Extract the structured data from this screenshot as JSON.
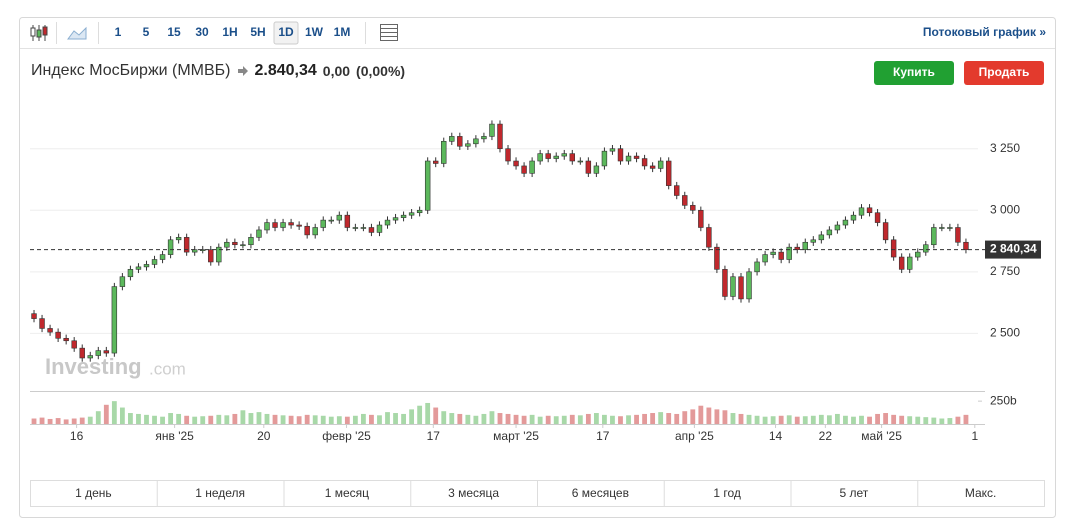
{
  "toolbar": {
    "intervals": [
      "1",
      "5",
      "15",
      "30",
      "1H",
      "5H",
      "1D",
      "1W",
      "1M"
    ],
    "active": "1D",
    "stream_link": "Потоковый график »"
  },
  "header": {
    "title": "Индекс МосБиржи (ММВБ)",
    "price": "2.840,34",
    "change": "0,00",
    "change_pct": "(0,00%)"
  },
  "buttons": {
    "buy": "Купить",
    "sell": "Продать"
  },
  "watermark": [
    "Investing",
    ".com"
  ],
  "chart_data": {
    "type": "candlestick",
    "up_color": "#5cb85c",
    "down_color": "#c0282d",
    "xlim": [
      -0.5,
      117.5
    ],
    "xticks": [
      {
        "value": 5.3,
        "label": "16"
      },
      {
        "value": 17.5,
        "label": "янв '25"
      },
      {
        "value": 28.6,
        "label": "20"
      },
      {
        "value": 38.9,
        "label": "февр '25"
      },
      {
        "value": 49.7,
        "label": "17"
      },
      {
        "value": 60,
        "label": "март '25"
      },
      {
        "value": 70.8,
        "label": "17"
      },
      {
        "value": 82.2,
        "label": "апр '25"
      },
      {
        "value": 92.3,
        "label": "14"
      },
      {
        "value": 98.5,
        "label": "22"
      },
      {
        "value": 105.5,
        "label": "май '25"
      },
      {
        "value": 117.1,
        "label": "1"
      }
    ],
    "ylim": [
      2270,
      3460
    ],
    "yticks": [
      {
        "value": 2500,
        "label": "2 500"
      },
      {
        "value": 2750,
        "label": "2 750"
      },
      {
        "value": 3000,
        "label": "3 000"
      },
      {
        "value": 3250,
        "label": "3 250"
      }
    ],
    "grid": true,
    "last_price": {
      "value": 2840.34,
      "label": "2 840,34"
    },
    "open": [
      2580,
      2560,
      2520,
      2505,
      2480,
      2470,
      2440,
      2400,
      2410,
      2430,
      2420,
      2690,
      2730,
      2760,
      2770,
      2780,
      2800,
      2820,
      2880,
      2890,
      2830,
      2840,
      2840,
      2790,
      2850,
      2870,
      2860,
      2860,
      2890,
      2920,
      2950,
      2930,
      2950,
      2940,
      2935,
      2900,
      2930,
      2960,
      2960,
      2980,
      2930,
      2930,
      2930,
      2910,
      2940,
      2960,
      2970,
      2980,
      2990,
      3000,
      3200,
      3190,
      3280,
      3300,
      3260,
      3270,
      3290,
      3300,
      3350,
      3250,
      3200,
      3180,
      3150,
      3200,
      3230,
      3210,
      3220,
      3230,
      3200,
      3200,
      3150,
      3180,
      3240,
      3250,
      3200,
      3220,
      3210,
      3180,
      3170,
      3200,
      3100,
      3060,
      3020,
      3000,
      2930,
      2850,
      2760,
      2650,
      2730,
      2640,
      2750,
      2790,
      2820,
      2830,
      2800,
      2850,
      2840,
      2870,
      2880,
      2900,
      2920,
      2940,
      2960,
      2980,
      3010,
      2990,
      2950,
      2880,
      2810,
      2760,
      2810,
      2830,
      2860,
      2930,
      2930,
      2930,
      2870
    ],
    "high": [
      2595,
      2575,
      2535,
      2520,
      2495,
      2485,
      2455,
      2425,
      2445,
      2445,
      2705,
      2745,
      2775,
      2785,
      2795,
      2815,
      2835,
      2895,
      2905,
      2905,
      2855,
      2855,
      2855,
      2865,
      2885,
      2885,
      2875,
      2905,
      2935,
      2965,
      2965,
      2965,
      2965,
      2955,
      2950,
      2945,
      2975,
      2975,
      2995,
      2995,
      2945,
      2945,
      2945,
      2955,
      2975,
      2985,
      2995,
      3005,
      3015,
      3215,
      3215,
      3295,
      3315,
      3315,
      3285,
      3305,
      3315,
      3365,
      3365,
      3265,
      3215,
      3195,
      3215,
      3245,
      3245,
      3235,
      3245,
      3245,
      3215,
      3215,
      3195,
      3255,
      3265,
      3265,
      3235,
      3235,
      3225,
      3195,
      3215,
      3215,
      3115,
      3075,
      3035,
      3015,
      2945,
      2865,
      2775,
      2745,
      2745,
      2765,
      2805,
      2835,
      2845,
      2845,
      2865,
      2865,
      2885,
      2895,
      2915,
      2935,
      2955,
      2975,
      2995,
      3025,
      3025,
      3005,
      2965,
      2895,
      2825,
      2825,
      2845,
      2875,
      2945,
      2945,
      2945,
      2945,
      2885
    ],
    "low": [
      2545,
      2505,
      2490,
      2465,
      2455,
      2425,
      2385,
      2385,
      2395,
      2405,
      2405,
      2675,
      2715,
      2745,
      2755,
      2765,
      2785,
      2805,
      2865,
      2815,
      2815,
      2825,
      2775,
      2775,
      2835,
      2845,
      2845,
      2845,
      2875,
      2905,
      2915,
      2915,
      2925,
      2920,
      2885,
      2885,
      2915,
      2945,
      2945,
      2915,
      2915,
      2915,
      2895,
      2895,
      2925,
      2945,
      2955,
      2965,
      2975,
      2985,
      3175,
      3175,
      3265,
      3245,
      3245,
      3255,
      3275,
      3285,
      3235,
      3185,
      3165,
      3135,
      3135,
      3185,
      3195,
      3195,
      3205,
      3185,
      3185,
      3135,
      3135,
      3165,
      3225,
      3185,
      3185,
      3195,
      3165,
      3155,
      3155,
      3085,
      3045,
      3005,
      2985,
      2915,
      2835,
      2745,
      2635,
      2635,
      2625,
      2625,
      2735,
      2775,
      2805,
      2785,
      2785,
      2825,
      2825,
      2855,
      2865,
      2885,
      2905,
      2925,
      2945,
      2965,
      2975,
      2935,
      2865,
      2795,
      2745,
      2745,
      2795,
      2815,
      2845,
      2915,
      2915,
      2855,
      2825
    ],
    "close": [
      2560,
      2520,
      2505,
      2480,
      2470,
      2440,
      2400,
      2410,
      2430,
      2420,
      2690,
      2730,
      2760,
      2770,
      2780,
      2800,
      2820,
      2880,
      2890,
      2830,
      2840,
      2840,
      2790,
      2850,
      2870,
      2860,
      2860,
      2890,
      2920,
      2950,
      2930,
      2950,
      2940,
      2935,
      2900,
      2930,
      2960,
      2960,
      2980,
      2930,
      2930,
      2930,
      2910,
      2940,
      2960,
      2970,
      2980,
      2990,
      3000,
      3200,
      3190,
      3280,
      3300,
      3260,
      3270,
      3290,
      3300,
      3350,
      3250,
      3200,
      3180,
      3150,
      3200,
      3230,
      3210,
      3220,
      3230,
      3200,
      3200,
      3150,
      3180,
      3240,
      3250,
      3200,
      3220,
      3210,
      3180,
      3170,
      3200,
      3100,
      3060,
      3020,
      3000,
      2930,
      2850,
      2760,
      2650,
      2730,
      2640,
      2750,
      2790,
      2820,
      2830,
      2800,
      2850,
      2840,
      2870,
      2880,
      2900,
      2920,
      2940,
      2960,
      2980,
      3010,
      2990,
      2950,
      2880,
      2810,
      2760,
      2810,
      2830,
      2860,
      2930,
      2930,
      2930,
      2870,
      2840
    ],
    "volume": {
      "up_color": "#a8d8a8",
      "down_color": "#e39a9a",
      "ylim": [
        0,
        350
      ],
      "yticks": [
        {
          "value": 250,
          "label": "250b"
        }
      ],
      "values": [
        60,
        70,
        55,
        65,
        50,
        60,
        70,
        80,
        140,
        210,
        250,
        180,
        120,
        110,
        100,
        90,
        80,
        120,
        110,
        90,
        80,
        85,
        90,
        100,
        95,
        110,
        150,
        120,
        130,
        110,
        100,
        95,
        90,
        85,
        100,
        95,
        90,
        80,
        85,
        80,
        90,
        110,
        100,
        95,
        130,
        120,
        110,
        160,
        200,
        230,
        180,
        140,
        120,
        110,
        100,
        90,
        110,
        140,
        120,
        110,
        100,
        90,
        100,
        80,
        90,
        85,
        90,
        100,
        95,
        110,
        120,
        100,
        90,
        85,
        95,
        100,
        110,
        120,
        130,
        120,
        110,
        140,
        160,
        200,
        180,
        160,
        150,
        120,
        110,
        100,
        90,
        80,
        85,
        90,
        95,
        80,
        85,
        90,
        100,
        95,
        110,
        90,
        80,
        90,
        80,
        110,
        120,
        100,
        90,
        85,
        80,
        75,
        70,
        60,
        65,
        80,
        100
      ]
    }
  },
  "ranges": [
    "1 день",
    "1 неделя",
    "1 месяц",
    "3 месяца",
    "6 месяцев",
    "1 год",
    "5 лет",
    "Макс."
  ]
}
